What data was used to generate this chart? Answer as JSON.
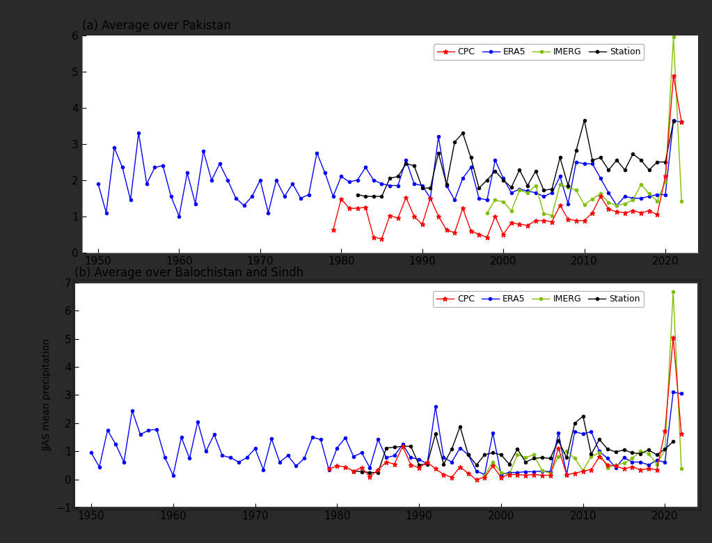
{
  "title_a": "(a) Average over Pakistan",
  "title_b": "(b) Average over Balochistan and Sindh",
  "ylabel_b": "JJAS mean precipitation",
  "years_full": [
    1950,
    1951,
    1952,
    1953,
    1954,
    1955,
    1956,
    1957,
    1958,
    1959,
    1960,
    1961,
    1962,
    1963,
    1964,
    1965,
    1966,
    1967,
    1968,
    1969,
    1970,
    1971,
    1972,
    1973,
    1974,
    1975,
    1976,
    1977,
    1978,
    1979,
    1980,
    1981,
    1982,
    1983,
    1984,
    1985,
    1986,
    1987,
    1988,
    1989,
    1990,
    1991,
    1992,
    1993,
    1994,
    1995,
    1996,
    1997,
    1998,
    1999,
    2000,
    2001,
    2002,
    2003,
    2004,
    2005,
    2006,
    2007,
    2008,
    2009,
    2010,
    2011,
    2012,
    2013,
    2014,
    2015,
    2016,
    2017,
    2018,
    2019,
    2020,
    2021,
    2022
  ],
  "era5_a": [
    1.9,
    1.1,
    2.9,
    2.35,
    1.45,
    3.3,
    1.9,
    2.35,
    2.4,
    1.55,
    1.0,
    2.2,
    1.35,
    2.8,
    2.0,
    2.45,
    2.0,
    1.5,
    1.3,
    1.55,
    2.0,
    1.1,
    2.0,
    1.55,
    1.9,
    1.5,
    1.6,
    2.75,
    2.2,
    1.55,
    2.1,
    1.95,
    2.0,
    2.35,
    2.0,
    1.9,
    1.85,
    1.85,
    2.55,
    1.9,
    1.85,
    1.5,
    3.2,
    1.85,
    1.45,
    2.05,
    2.35,
    1.5,
    1.45,
    2.55,
    2.05,
    1.65,
    1.75,
    1.7,
    1.65,
    1.55,
    1.65,
    2.1,
    1.35,
    2.5,
    2.45,
    2.45,
    2.05,
    1.65,
    1.3,
    1.55,
    1.5,
    1.5,
    1.55,
    1.6,
    1.6,
    3.65,
    3.6
  ],
  "cpc_a": [
    null,
    null,
    null,
    null,
    null,
    null,
    null,
    null,
    null,
    null,
    null,
    null,
    null,
    null,
    null,
    null,
    null,
    null,
    null,
    null,
    null,
    null,
    null,
    null,
    null,
    null,
    null,
    null,
    null,
    0.62,
    1.48,
    1.22,
    1.22,
    1.25,
    0.42,
    0.38,
    1.02,
    0.95,
    1.52,
    1.0,
    0.78,
    1.5,
    1.0,
    0.62,
    0.55,
    1.22,
    0.6,
    0.5,
    0.42,
    1.0,
    0.5,
    0.82,
    0.78,
    0.75,
    0.88,
    0.88,
    0.85,
    1.3,
    0.92,
    0.88,
    0.88,
    1.1,
    1.55,
    1.2,
    1.12,
    1.1,
    1.15,
    1.1,
    1.15,
    1.05,
    2.1,
    4.88,
    3.6
  ],
  "station_a": [
    null,
    null,
    null,
    null,
    null,
    null,
    null,
    null,
    null,
    null,
    null,
    null,
    null,
    null,
    null,
    null,
    null,
    null,
    null,
    null,
    null,
    null,
    null,
    null,
    null,
    null,
    null,
    null,
    null,
    null,
    null,
    null,
    1.6,
    1.55,
    1.55,
    1.55,
    2.05,
    2.1,
    2.45,
    2.4,
    1.78,
    1.78,
    2.75,
    1.88,
    3.05,
    3.3,
    2.62,
    1.78,
    2.0,
    2.25,
    2.0,
    1.8,
    2.28,
    1.85,
    2.25,
    1.72,
    1.75,
    2.62,
    1.85,
    2.82,
    3.65,
    2.55,
    2.62,
    2.28,
    2.55,
    2.28,
    2.72,
    2.55,
    2.28,
    2.5,
    2.5,
    3.62,
    null
  ],
  "imerg_a": [
    null,
    null,
    null,
    null,
    null,
    null,
    null,
    null,
    null,
    null,
    null,
    null,
    null,
    null,
    null,
    null,
    null,
    null,
    null,
    null,
    null,
    null,
    null,
    null,
    null,
    null,
    null,
    null,
    null,
    null,
    null,
    null,
    null,
    null,
    null,
    null,
    null,
    null,
    null,
    null,
    null,
    null,
    null,
    null,
    null,
    null,
    null,
    null,
    1.1,
    1.45,
    1.4,
    1.15,
    1.72,
    1.65,
    1.85,
    1.08,
    1.02,
    1.88,
    1.8,
    1.72,
    1.32,
    1.48,
    1.62,
    1.38,
    1.3,
    1.35,
    1.45,
    1.88,
    1.62,
    1.42,
    1.95,
    5.95,
    1.42
  ],
  "era5_b": [
    0.95,
    0.45,
    1.75,
    1.25,
    0.62,
    2.45,
    1.6,
    1.75,
    1.78,
    0.78,
    0.15,
    1.5,
    0.75,
    2.05,
    1.0,
    1.6,
    0.85,
    0.78,
    0.62,
    0.78,
    1.1,
    0.35,
    1.45,
    0.62,
    0.85,
    0.48,
    0.75,
    1.5,
    1.42,
    0.35,
    1.12,
    1.48,
    0.82,
    0.95,
    0.42,
    1.42,
    0.78,
    0.85,
    1.25,
    0.78,
    0.72,
    0.55,
    2.58,
    0.78,
    0.62,
    1.12,
    0.88,
    0.3,
    0.18,
    1.65,
    0.18,
    0.25,
    0.25,
    0.28,
    0.28,
    0.3,
    0.28,
    1.65,
    0.18,
    1.7,
    1.62,
    1.7,
    1.0,
    0.75,
    0.42,
    0.78,
    0.62,
    0.62,
    0.52,
    0.68,
    0.62,
    3.1,
    3.05
  ],
  "cpc_b": [
    null,
    null,
    null,
    null,
    null,
    null,
    null,
    null,
    null,
    null,
    null,
    null,
    null,
    null,
    null,
    null,
    null,
    null,
    null,
    null,
    null,
    null,
    null,
    null,
    null,
    null,
    null,
    null,
    null,
    0.38,
    0.48,
    0.45,
    0.3,
    0.42,
    0.1,
    0.35,
    0.62,
    0.55,
    1.18,
    0.52,
    0.42,
    0.62,
    0.38,
    0.18,
    0.08,
    0.45,
    0.22,
    0.0,
    0.08,
    0.48,
    0.08,
    0.18,
    0.18,
    0.15,
    0.18,
    0.15,
    0.15,
    1.12,
    0.18,
    0.22,
    0.3,
    0.35,
    0.82,
    0.52,
    0.48,
    0.38,
    0.45,
    0.35,
    0.38,
    0.35,
    1.72,
    5.05,
    1.62
  ],
  "station_b": [
    null,
    null,
    null,
    null,
    null,
    null,
    null,
    null,
    null,
    null,
    null,
    null,
    null,
    null,
    null,
    null,
    null,
    null,
    null,
    null,
    null,
    null,
    null,
    null,
    null,
    null,
    null,
    null,
    null,
    null,
    null,
    null,
    0.3,
    0.28,
    0.25,
    0.25,
    1.12,
    1.15,
    1.18,
    1.18,
    0.52,
    0.55,
    1.62,
    0.55,
    1.08,
    1.88,
    0.88,
    0.52,
    0.88,
    0.95,
    0.88,
    0.55,
    1.08,
    0.62,
    0.75,
    0.78,
    0.75,
    1.38,
    0.78,
    2.0,
    2.25,
    0.9,
    1.42,
    1.08,
    0.98,
    1.05,
    0.95,
    0.92,
    1.05,
    0.88,
    1.08,
    1.35,
    null
  ],
  "imerg_b": [
    null,
    null,
    null,
    null,
    null,
    null,
    null,
    null,
    null,
    null,
    null,
    null,
    null,
    null,
    null,
    null,
    null,
    null,
    null,
    null,
    null,
    null,
    null,
    null,
    null,
    null,
    null,
    null,
    null,
    null,
    null,
    null,
    null,
    null,
    null,
    null,
    null,
    null,
    null,
    null,
    null,
    null,
    null,
    null,
    null,
    null,
    null,
    null,
    0.15,
    0.62,
    0.25,
    0.18,
    0.88,
    0.78,
    0.88,
    0.32,
    0.22,
    0.82,
    1.0,
    0.75,
    0.32,
    0.82,
    0.95,
    0.42,
    0.52,
    0.58,
    0.75,
    1.0,
    0.92,
    0.55,
    1.05,
    6.68,
    0.38
  ],
  "color_cpc": "#ff0000",
  "color_era5": "#0000ff",
  "color_imerg": "#7fbf00",
  "color_station": "#000000",
  "ylim_a": [
    0,
    6
  ],
  "yticks_a": [
    0,
    1,
    2,
    3,
    4,
    5,
    6
  ],
  "ylim_b": [
    -1,
    7
  ],
  "yticks_b": [
    -1,
    0,
    1,
    2,
    3,
    4,
    5,
    6,
    7
  ],
  "xlim": [
    1948,
    2024
  ],
  "xticks": [
    1950,
    1960,
    1970,
    1980,
    1990,
    2000,
    2010,
    2020
  ],
  "fig_bg": "#2a2a2a",
  "panel_a_bg": "#ffffff",
  "panel_b_bg": "#ffffff",
  "panel_b_border_color": "#333333"
}
